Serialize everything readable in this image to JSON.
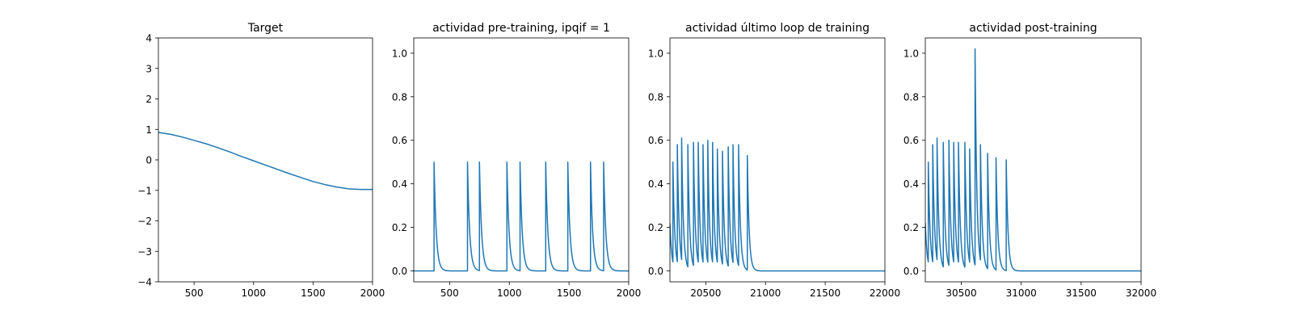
{
  "figure": {
    "line_color": "#1f77b4",
    "background": "#ffffff"
  },
  "chart_data": [
    {
      "type": "line",
      "title": "Target",
      "xlabel": "",
      "ylabel": "",
      "xlim": [
        200,
        2000
      ],
      "ylim": [
        -4,
        4
      ],
      "xticks": [
        500,
        1000,
        1500,
        2000
      ],
      "xtick_labels": [
        "500",
        "1000",
        "1500",
        "2000"
      ],
      "yticks": [
        -4,
        -3,
        -2,
        -1,
        0,
        1,
        2,
        3,
        4
      ],
      "ytick_labels": [
        "−4",
        "−3",
        "−2",
        "−1",
        "0",
        "1",
        "2",
        "3",
        "4"
      ],
      "grid": false,
      "series": [
        {
          "x": [
            200,
            300,
            400,
            500,
            600,
            700,
            800,
            900,
            1000,
            1100,
            1200,
            1300,
            1400,
            1500,
            1600,
            1700,
            1800,
            1900,
            2000
          ],
          "y": [
            0.9,
            0.84,
            0.75,
            0.64,
            0.53,
            0.4,
            0.26,
            0.11,
            -0.03,
            -0.17,
            -0.31,
            -0.45,
            -0.58,
            -0.71,
            -0.81,
            -0.89,
            -0.95,
            -0.97,
            -0.97
          ]
        }
      ]
    },
    {
      "type": "line",
      "title": "actividad pre-training, ipqif = 1",
      "xlabel": "",
      "ylabel": "",
      "xlim": [
        200,
        2000
      ],
      "ylim": [
        -0.05,
        1.07
      ],
      "xticks": [
        500,
        1000,
        1500,
        2000
      ],
      "xtick_labels": [
        "500",
        "1000",
        "1500",
        "2000"
      ],
      "yticks": [
        0.0,
        0.2,
        0.4,
        0.6,
        0.8,
        1.0
      ],
      "ytick_labels": [
        "0.0",
        "0.2",
        "0.4",
        "0.6",
        "0.8",
        "1.0"
      ],
      "grid": false,
      "spike_train": {
        "baseline": 0.0,
        "decay": 18,
        "spikes": [
          {
            "t": 370,
            "a": 0.5
          },
          {
            "t": 650,
            "a": 0.5
          },
          {
            "t": 750,
            "a": 0.5
          },
          {
            "t": 980,
            "a": 0.5
          },
          {
            "t": 1090,
            "a": 0.5
          },
          {
            "t": 1305,
            "a": 0.5
          },
          {
            "t": 1490,
            "a": 0.5
          },
          {
            "t": 1680,
            "a": 0.5
          },
          {
            "t": 1790,
            "a": 0.5
          }
        ]
      }
    },
    {
      "type": "line",
      "title": "actividad último loop de training",
      "xlabel": "",
      "ylabel": "",
      "xlim": [
        20200,
        22000
      ],
      "ylim": [
        -0.05,
        1.07
      ],
      "xticks": [
        20500,
        21000,
        21500,
        22000
      ],
      "xtick_labels": [
        "20500",
        "21000",
        "21500",
        "22000"
      ],
      "yticks": [
        0.0,
        0.2,
        0.4,
        0.6,
        0.8,
        1.0
      ],
      "ytick_labels": [
        "0.0",
        "0.2",
        "0.4",
        "0.6",
        "0.8",
        "1.0"
      ],
      "grid": false,
      "spike_train": {
        "baseline": 0.0,
        "decay": 15,
        "spikes": [
          {
            "t": 20200,
            "a": 0.22
          },
          {
            "t": 20225,
            "a": 0.5
          },
          {
            "t": 20262,
            "a": 0.58
          },
          {
            "t": 20298,
            "a": 0.61
          },
          {
            "t": 20350,
            "a": 0.58
          },
          {
            "t": 20397,
            "a": 0.59
          },
          {
            "t": 20437,
            "a": 0.59
          },
          {
            "t": 20477,
            "a": 0.58
          },
          {
            "t": 20517,
            "a": 0.6
          },
          {
            "t": 20557,
            "a": 0.59
          },
          {
            "t": 20597,
            "a": 0.56
          },
          {
            "t": 20640,
            "a": 0.55
          },
          {
            "t": 20688,
            "a": 0.57
          },
          {
            "t": 20728,
            "a": 0.58
          },
          {
            "t": 20775,
            "a": 0.58
          },
          {
            "t": 20848,
            "a": 0.53
          }
        ]
      }
    },
    {
      "type": "line",
      "title": "actividad post-training",
      "xlabel": "",
      "ylabel": "",
      "xlim": [
        30200,
        32000
      ],
      "ylim": [
        -0.05,
        1.07
      ],
      "xticks": [
        30500,
        31000,
        31500,
        32000
      ],
      "xtick_labels": [
        "30500",
        "31000",
        "31500",
        "32000"
      ],
      "yticks": [
        0.0,
        0.2,
        0.4,
        0.6,
        0.8,
        1.0
      ],
      "ytick_labels": [
        "0.0",
        "0.2",
        "0.4",
        "0.6",
        "0.8",
        "1.0"
      ],
      "grid": false,
      "spike_train": {
        "baseline": 0.0,
        "decay": 15,
        "spikes": [
          {
            "t": 30200,
            "a": 0.22
          },
          {
            "t": 30225,
            "a": 0.5
          },
          {
            "t": 30262,
            "a": 0.58
          },
          {
            "t": 30298,
            "a": 0.61
          },
          {
            "t": 30350,
            "a": 0.59
          },
          {
            "t": 30397,
            "a": 0.6
          },
          {
            "t": 30437,
            "a": 0.59
          },
          {
            "t": 30477,
            "a": 0.59
          },
          {
            "t": 30530,
            "a": 0.59
          },
          {
            "t": 30570,
            "a": 0.56
          },
          {
            "t": 30615,
            "a": 1.02
          },
          {
            "t": 30660,
            "a": 0.58
          },
          {
            "t": 30720,
            "a": 0.54
          },
          {
            "t": 30790,
            "a": 0.52
          },
          {
            "t": 30875,
            "a": 0.51
          }
        ]
      }
    }
  ]
}
